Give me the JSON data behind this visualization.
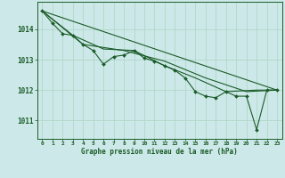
{
  "background_color": "#cde8e8",
  "grid_color_major": "#b0d8c8",
  "grid_color_minor": "#c8e4d8",
  "line_color": "#1a5c28",
  "title": "Graphe pression niveau de la mer (hPa)",
  "xlim": [
    -0.5,
    23.5
  ],
  "ylim": [
    1010.4,
    1014.9
  ],
  "yticks": [
    1011,
    1012,
    1013,
    1014
  ],
  "xticks": [
    0,
    1,
    2,
    3,
    4,
    5,
    6,
    7,
    8,
    9,
    10,
    11,
    12,
    13,
    14,
    15,
    16,
    17,
    18,
    19,
    20,
    21,
    22,
    23
  ],
  "series_main": [
    [
      0,
      1014.6
    ],
    [
      1,
      1014.2
    ],
    [
      2,
      1013.85
    ],
    [
      3,
      1013.8
    ],
    [
      4,
      1013.5
    ],
    [
      5,
      1013.3
    ],
    [
      6,
      1012.85
    ],
    [
      7,
      1013.1
    ],
    [
      8,
      1013.15
    ],
    [
      9,
      1013.3
    ],
    [
      10,
      1013.05
    ],
    [
      11,
      1012.95
    ],
    [
      12,
      1012.8
    ],
    [
      13,
      1012.65
    ],
    [
      14,
      1012.4
    ],
    [
      15,
      1011.95
    ],
    [
      16,
      1011.8
    ],
    [
      17,
      1011.75
    ],
    [
      18,
      1011.95
    ],
    [
      19,
      1011.8
    ],
    [
      20,
      1011.8
    ],
    [
      21,
      1010.7
    ],
    [
      22,
      1012.0
    ],
    [
      23,
      1012.0
    ]
  ],
  "series_trend1": [
    [
      0,
      1014.6
    ],
    [
      3,
      1013.8
    ],
    [
      6,
      1013.35
    ],
    [
      9,
      1013.3
    ],
    [
      12,
      1012.8
    ],
    [
      15,
      1012.4
    ],
    [
      18,
      1011.95
    ],
    [
      21,
      1012.0
    ],
    [
      23,
      1012.0
    ]
  ],
  "series_trend2": [
    [
      0,
      1014.6
    ],
    [
      4,
      1013.5
    ],
    [
      8,
      1013.3
    ],
    [
      12,
      1012.95
    ],
    [
      16,
      1012.4
    ],
    [
      20,
      1011.95
    ],
    [
      23,
      1012.0
    ]
  ],
  "series_trend3": [
    [
      0,
      1014.6
    ],
    [
      23,
      1012.0
    ]
  ]
}
